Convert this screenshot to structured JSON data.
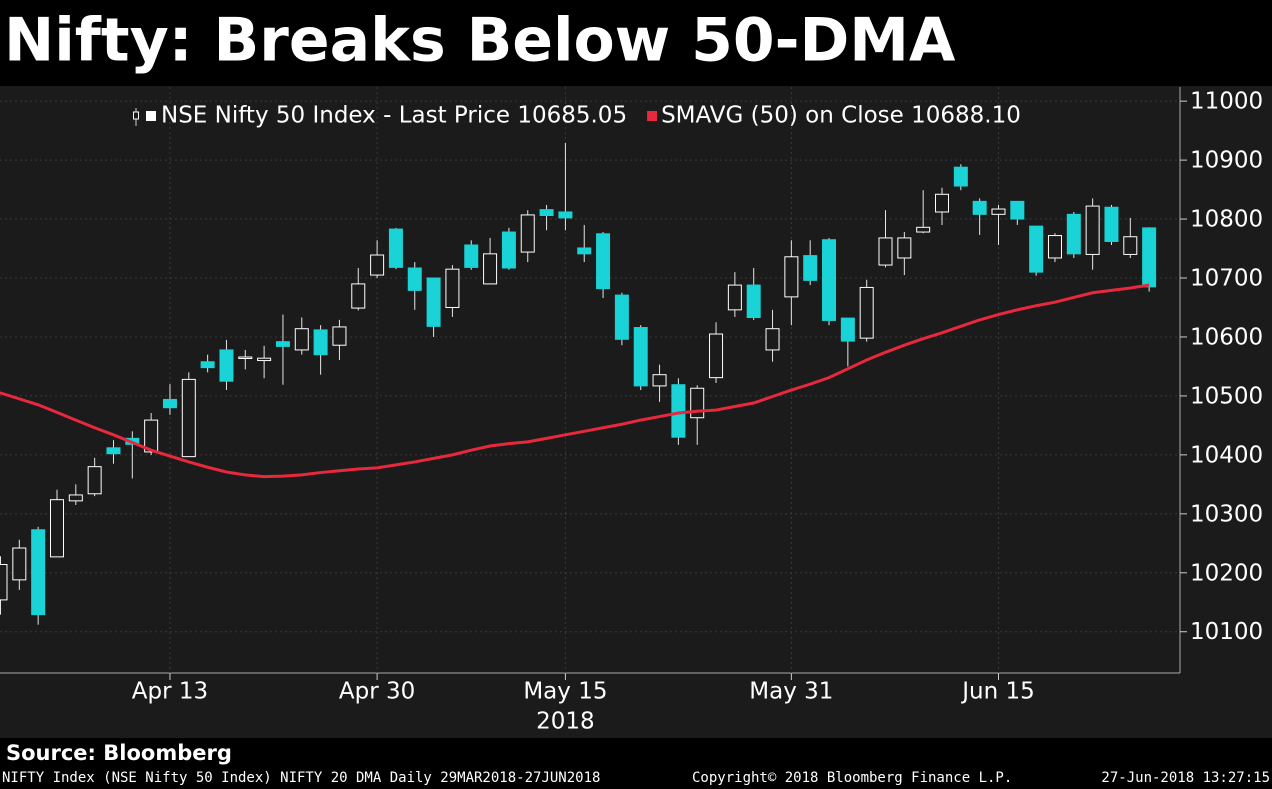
{
  "chart_data": {
    "type": "candlestick",
    "title": "Nifty: Breaks Below 50-DMA",
    "categories": [
      null,
      null,
      null,
      null,
      null,
      null,
      null,
      null,
      null,
      "Apr 13",
      null,
      null,
      null,
      null,
      null,
      null,
      null,
      null,
      null,
      null,
      "Apr 30",
      null,
      null,
      null,
      null,
      null,
      null,
      null,
      null,
      null,
      "May 15",
      null,
      null,
      null,
      null,
      null,
      null,
      null,
      null,
      null,
      null,
      null,
      "May 31",
      null,
      null,
      null,
      null,
      null,
      null,
      null,
      null,
      null,
      null,
      "Jun 15",
      null,
      null,
      null,
      null,
      null,
      null,
      null,
      null
    ],
    "year_label": "2018",
    "year_under": 30,
    "ohlc": {
      "name": "NSE Nifty 50 Index - Last Price 10685.05",
      "up_color": "#ffffff",
      "down_color": "#19d3d6",
      "open": [
        10154,
        10188,
        10273,
        10227,
        10322,
        10334,
        10412,
        10428,
        10405,
        10494,
        10397,
        10558,
        10578,
        10565,
        10560,
        10592,
        10578,
        10612,
        10586,
        10649,
        10705,
        10783,
        10717,
        10700,
        10650,
        10756,
        10690,
        10778,
        10744,
        10816,
        10812,
        10751,
        10775,
        10671,
        10616,
        10517,
        10519,
        10463,
        10531,
        10646,
        10688,
        10578,
        10668,
        10738,
        10765,
        10632,
        10598,
        10722,
        10734,
        10778,
        10812,
        10888,
        10830,
        10808,
        10830,
        10788,
        10734,
        10808,
        10740,
        10820,
        10740,
        10785
      ],
      "high": [
        10228,
        10256,
        10278,
        10341,
        10350,
        10395,
        10425,
        10440,
        10471,
        10520,
        10540,
        10570,
        10595,
        10578,
        10585,
        10638,
        10633,
        10620,
        10629,
        10717,
        10764,
        10785,
        10727,
        10700,
        10722,
        10764,
        10768,
        10785,
        10815,
        10824,
        10929,
        10790,
        10778,
        10675,
        10620,
        10553,
        10530,
        10518,
        10625,
        10710,
        10717,
        10646,
        10764,
        10764,
        10768,
        10632,
        10697,
        10815,
        10778,
        10849,
        10853,
        10893,
        10835,
        10824,
        10830,
        10788,
        10776,
        10812,
        10835,
        10824,
        10802,
        10786
      ],
      "low": [
        10129,
        10171,
        10112,
        10227,
        10315,
        10330,
        10385,
        10360,
        10400,
        10468,
        10397,
        10540,
        10510,
        10545,
        10530,
        10519,
        10570,
        10536,
        10561,
        10645,
        10700,
        10715,
        10646,
        10600,
        10634,
        10714,
        10690,
        10714,
        10727,
        10781,
        10781,
        10727,
        10666,
        10586,
        10510,
        10490,
        10417,
        10417,
        10522,
        10634,
        10629,
        10558,
        10620,
        10688,
        10620,
        10550,
        10592,
        10718,
        10705,
        10776,
        10790,
        10849,
        10773,
        10756,
        10790,
        10704,
        10727,
        10734,
        10714,
        10756,
        10734,
        10677
      ],
      "close": [
        10214,
        10242,
        10129,
        10324,
        10332,
        10380,
        10402,
        10418,
        10459,
        10480,
        10528,
        10548,
        10525,
        10566,
        10564,
        10584,
        10614,
        10570,
        10617,
        10690,
        10739,
        10718,
        10679,
        10618,
        10715,
        10718,
        10741,
        10717,
        10807,
        10806,
        10802,
        10741,
        10682,
        10596,
        10517,
        10536,
        10430,
        10513,
        10605,
        10688,
        10633,
        10614,
        10736,
        10696,
        10628,
        10593,
        10684,
        10768,
        10768,
        10786,
        10842,
        10856,
        10808,
        10817,
        10800,
        10710,
        10772,
        10741,
        10822,
        10762,
        10770,
        10685.05
      ]
    },
    "overlay": {
      "name": "SMAVG (50) on Close 10688.10",
      "color": "#e8283c",
      "values": [
        10505,
        10495,
        10485,
        10472,
        10459,
        10446,
        10434,
        10421,
        10408,
        10398,
        10388,
        10379,
        10371,
        10366,
        10363,
        10364,
        10366,
        10370,
        10373,
        10376,
        10378,
        10383,
        10388,
        10394,
        10400,
        10408,
        10415,
        10419,
        10422,
        10428,
        10434,
        10440,
        10446,
        10452,
        10459,
        10465,
        10471,
        10474,
        10476,
        10482,
        10488,
        10499,
        10510,
        10520,
        10531,
        10546,
        10561,
        10574,
        10586,
        10597,
        10607,
        10618,
        10629,
        10638,
        10646,
        10653,
        10659,
        10667,
        10675,
        10679,
        10683,
        10688.1
      ]
    },
    "ylim": [
      10030,
      11024
    ],
    "yticks": [
      10100,
      10200,
      10300,
      10400,
      10500,
      10600,
      10700,
      10800,
      10900,
      11000
    ],
    "y_axis_side": "right",
    "grid": true
  },
  "footer": {
    "source": "Source: Bloomberg",
    "description": "NIFTY Index (NSE Nifty 50 Index) NIFTY 20 DMA  Daily 29MAR2018-27JUN2018",
    "copyright": "Copyright© 2018 Bloomberg Finance L.P.",
    "timestamp": "27-Jun-2018 13:27:15"
  }
}
